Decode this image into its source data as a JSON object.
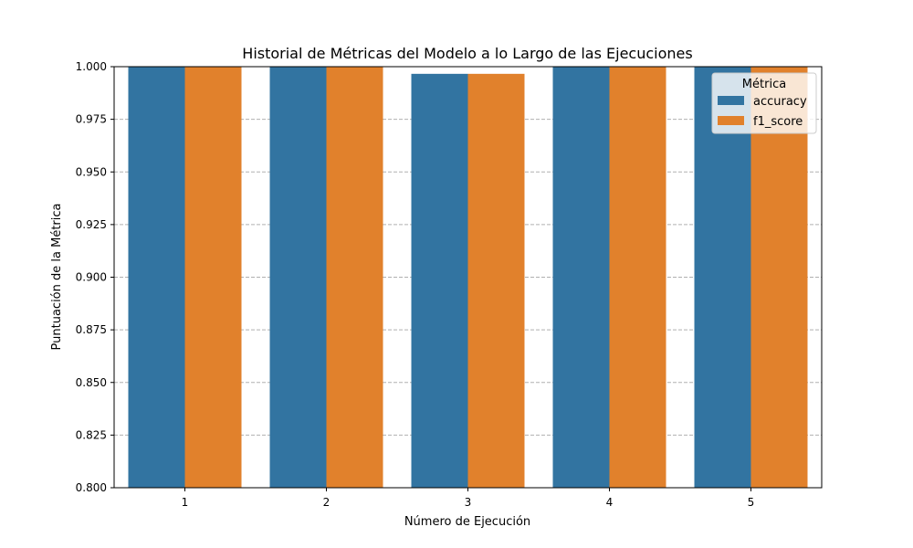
{
  "chart_data": {
    "type": "bar",
    "title": "Historial de Métricas del Modelo a lo Largo de las Ejecuciones",
    "xlabel": "Número de Ejecución",
    "ylabel": "Puntuación de la Métrica",
    "categories": [
      "1",
      "2",
      "3",
      "4",
      "5"
    ],
    "series": [
      {
        "name": "accuracy",
        "color": "#3274a1",
        "values": [
          1.0,
          1.0,
          0.9966,
          1.0,
          1.0
        ]
      },
      {
        "name": "f1_score",
        "color": "#e1812c",
        "values": [
          1.0,
          1.0,
          0.9966,
          1.0,
          1.0
        ]
      }
    ],
    "ylim": [
      0.8,
      1.0
    ],
    "yticks": [
      "0.800",
      "0.825",
      "0.850",
      "0.875",
      "0.900",
      "0.925",
      "0.950",
      "0.975",
      "1.000"
    ],
    "grid": {
      "y": true,
      "style": "dashed"
    },
    "legend": {
      "title": "Métrica",
      "position": "top-right"
    }
  }
}
